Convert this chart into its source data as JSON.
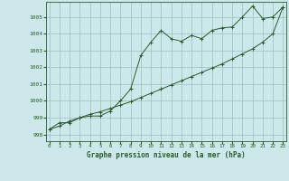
{
  "title": "Graphe pression niveau de la mer (hPa)",
  "bg_color": "#cce8ea",
  "line_color": "#2d5a2d",
  "grid_color": "#9abfbf",
  "x_ticks": [
    0,
    1,
    2,
    3,
    4,
    5,
    6,
    7,
    8,
    9,
    10,
    11,
    12,
    13,
    14,
    15,
    16,
    17,
    18,
    19,
    20,
    21,
    22,
    23
  ],
  "y_ticks": [
    998,
    999,
    1000,
    1001,
    1002,
    1003,
    1004,
    1005
  ],
  "ylim": [
    997.6,
    1005.9
  ],
  "xlim": [
    -0.3,
    23.3
  ],
  "series1": [
    998.3,
    998.7,
    998.7,
    999.0,
    999.1,
    999.1,
    999.4,
    1000.0,
    1000.7,
    1002.7,
    1003.5,
    1004.2,
    1003.7,
    1003.55,
    1003.9,
    1003.7,
    1004.2,
    1004.35,
    1004.4,
    1005.0,
    1005.65,
    1004.9,
    1005.0,
    1005.6
  ],
  "series2": [
    998.3,
    998.5,
    998.8,
    999.0,
    999.2,
    999.35,
    999.55,
    999.75,
    999.95,
    1000.2,
    1000.45,
    1000.7,
    1000.95,
    1001.2,
    1001.45,
    1001.7,
    1001.95,
    1002.2,
    1002.5,
    1002.8,
    1003.1,
    1003.5,
    1004.0,
    1005.6
  ]
}
